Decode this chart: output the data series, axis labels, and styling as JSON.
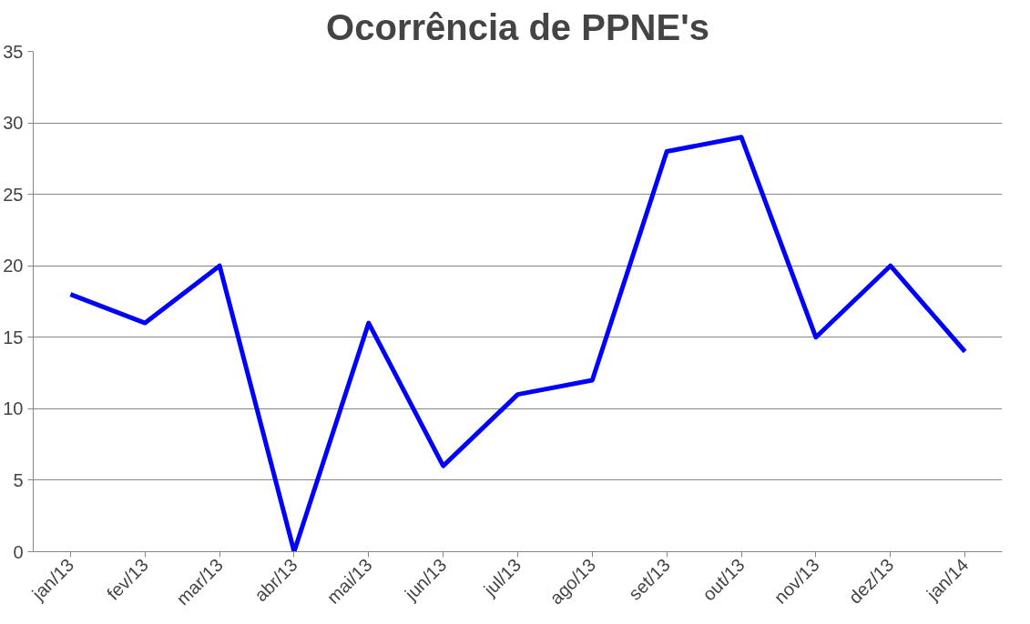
{
  "chart_data": {
    "type": "line",
    "title": "Ocorrência de PPNE's",
    "categories": [
      "jan/13",
      "fev/13",
      "mar/13",
      "abr/13",
      "mai/13",
      "jun/13",
      "jul/13",
      "ago/13",
      "set/13",
      "out/13",
      "nov/13",
      "dez/13",
      "jan/14"
    ],
    "series": [
      {
        "color": "#0000ff",
        "values": [
          18,
          16,
          20,
          0,
          16,
          6,
          11,
          12,
          28,
          29,
          15,
          20,
          14
        ]
      }
    ],
    "ylim": [
      0,
      35
    ],
    "yticks": [
      0,
      5,
      10,
      15,
      20,
      25,
      30,
      35
    ],
    "grid": "y",
    "marker": "none",
    "line_style": "solid"
  }
}
